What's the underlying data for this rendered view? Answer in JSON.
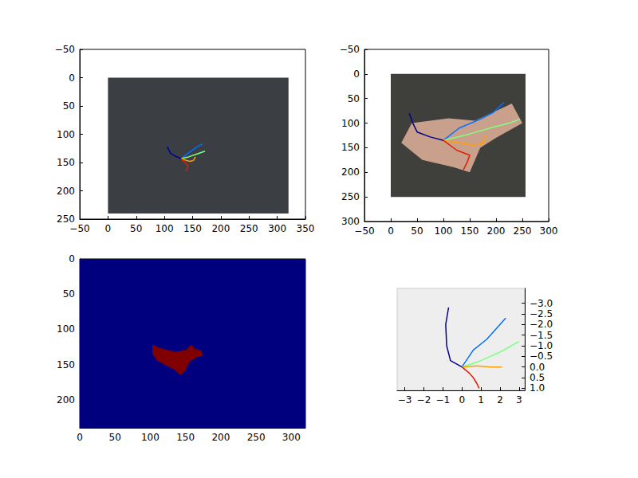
{
  "chart_data": [
    {
      "type": "line",
      "xlim": [
        -50,
        350
      ],
      "xticks": [
        {
          "value": -50,
          "label": "−50"
        },
        0,
        50,
        100,
        150,
        200,
        250,
        300,
        350
      ],
      "ylim": [
        250,
        -50
      ],
      "yticks": [
        {
          "value": -50,
          "label": "−50"
        },
        0,
        50,
        100,
        150,
        200,
        250
      ],
      "series": [
        {
          "type": "polygon",
          "color": "#3b3f44",
          "x": [
            0,
            320,
            320,
            0
          ],
          "y": [
            0,
            0,
            240,
            240
          ]
        },
        {
          "color": "#00008f",
          "x": [
            130,
            120,
            111,
            108,
            105
          ],
          "y": [
            143,
            139,
            134,
            128,
            122
          ]
        },
        {
          "color": "#0070ff",
          "x": [
            130,
            140,
            150,
            158,
            168
          ],
          "y": [
            143,
            135,
            128,
            122,
            117
          ]
        },
        {
          "color": "#80ff80",
          "x": [
            130,
            143,
            155,
            163,
            172
          ],
          "y": [
            143,
            140,
            136,
            133,
            130
          ]
        },
        {
          "color": "#ffa000",
          "x": [
            130,
            138,
            146,
            152,
            155
          ],
          "y": [
            143,
            146,
            148,
            146,
            140
          ]
        },
        {
          "color": "#e02000",
          "x": [
            130,
            136,
            142,
            141,
            138
          ],
          "y": [
            143,
            150,
            155,
            160,
            165
          ]
        }
      ]
    },
    {
      "type": "line",
      "xlim": [
        -50,
        300
      ],
      "xticks": [
        {
          "value": -50,
          "label": "−50"
        },
        0,
        50,
        100,
        150,
        200,
        250,
        300
      ],
      "ylim": [
        300,
        -50
      ],
      "yticks": [
        {
          "value": -50,
          "label": "−50"
        },
        0,
        50,
        100,
        150,
        200,
        250,
        300
      ],
      "series": [
        {
          "type": "polygon",
          "color": "#3f3f3c",
          "x": [
            0,
            256,
            256,
            0
          ],
          "y": [
            0,
            0,
            250,
            250
          ]
        },
        {
          "type": "polygon",
          "color": "#c9a08c",
          "x": [
            40,
            110,
            160,
            230,
            250,
            200,
            170,
            150,
            120,
            60,
            20
          ],
          "y": [
            100,
            90,
            95,
            60,
            100,
            130,
            150,
            200,
            190,
            175,
            140
          ]
        },
        {
          "color": "#00008f",
          "x": [
            100,
            75,
            50,
            42,
            35
          ],
          "y": [
            135,
            128,
            118,
            100,
            80
          ]
        },
        {
          "color": "#0070ff",
          "x": [
            100,
            130,
            170,
            195,
            215
          ],
          "y": [
            135,
            110,
            92,
            78,
            58
          ]
        },
        {
          "color": "#80ff80",
          "x": [
            100,
            150,
            195,
            225,
            245
          ],
          "y": [
            135,
            122,
            108,
            100,
            92
          ]
        },
        {
          "color": "#ffa000",
          "x": [
            100,
            130,
            155,
            175,
            180
          ],
          "y": [
            135,
            140,
            145,
            142,
            125
          ]
        },
        {
          "color": "#e02000",
          "x": [
            100,
            125,
            150,
            145,
            138
          ],
          "y": [
            135,
            155,
            165,
            180,
            195
          ]
        }
      ]
    },
    {
      "type": "polygon",
      "xlim": [
        0,
        320
      ],
      "xticks": [
        0,
        50,
        100,
        150,
        200,
        250,
        300
      ],
      "ylim": [
        240,
        0
      ],
      "yticks": [
        0,
        50,
        100,
        150,
        200
      ],
      "series": [
        {
          "color": "#00007f",
          "x": [
            0,
            320,
            320,
            0
          ],
          "y": [
            0,
            0,
            240,
            240
          ]
        },
        {
          "color": "#800000",
          "x": [
            103,
            115,
            135,
            150,
            158,
            163,
            172,
            175,
            165,
            155,
            150,
            143,
            135,
            120,
            110,
            103
          ],
          "y": [
            122,
            127,
            132,
            130,
            122,
            128,
            130,
            137,
            140,
            147,
            158,
            165,
            158,
            150,
            145,
            135
          ]
        }
      ]
    },
    {
      "type": "line",
      "xlim": [
        -3.4,
        3.3
      ],
      "xticks": [
        {
          "value": -3,
          "label": "−3"
        },
        {
          "value": -2,
          "label": "−2"
        },
        {
          "value": -1,
          "label": "−1"
        },
        0,
        1,
        2,
        3
      ],
      "ylim": [
        1.1,
        -3.7
      ],
      "yticks": [
        {
          "value": -3,
          "label": "−3.0"
        },
        {
          "value": -2.5,
          "label": "−2.5"
        },
        {
          "value": -2,
          "label": "−2.0"
        },
        {
          "value": -1.5,
          "label": "−1.5"
        },
        {
          "value": -1,
          "label": "−1.0"
        },
        {
          "value": -0.5,
          "label": "−0.5"
        },
        {
          "value": 0,
          "label": "0.0"
        },
        0.5,
        {
          "value": 1,
          "label": "1.0"
        }
      ],
      "series": [
        {
          "color": "#00008f",
          "x": [
            0,
            -0.6,
            -0.8,
            -0.85,
            -0.7
          ],
          "y": [
            0,
            -0.3,
            -1.0,
            -2.0,
            -2.8
          ]
        },
        {
          "color": "#0070ff",
          "x": [
            0,
            0.6,
            1.3,
            1.9,
            2.3
          ],
          "y": [
            0,
            -0.8,
            -1.3,
            -1.9,
            -2.3
          ]
        },
        {
          "color": "#80ff80",
          "x": [
            0,
            1.0,
            2.0,
            3.0
          ],
          "y": [
            0,
            -0.3,
            -0.7,
            -1.2
          ]
        },
        {
          "color": "#ffa000",
          "x": [
            0,
            0.8,
            1.5,
            2.1
          ],
          "y": [
            0,
            -0.05,
            0,
            0
          ]
        },
        {
          "color": "#e02000",
          "x": [
            0,
            0.4,
            0.6,
            0.8,
            0.9
          ],
          "y": [
            0,
            0.3,
            0.5,
            0.8,
            1.0
          ]
        }
      ]
    }
  ]
}
